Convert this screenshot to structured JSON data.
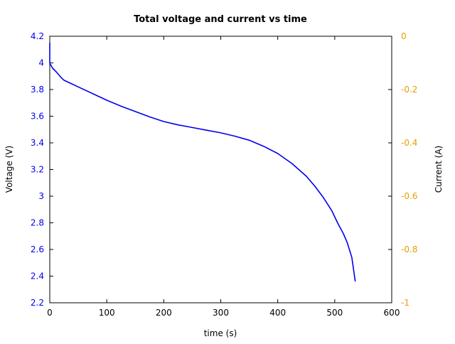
{
  "chart_data": {
    "type": "line",
    "title": "Total voltage and current vs time",
    "xlabel": "time (s)",
    "ylabel": "Voltage (V)",
    "y2label": "Current (A)",
    "xlim": [
      0,
      600
    ],
    "ylim": [
      2.2,
      4.2
    ],
    "y2lim": [
      -1,
      0
    ],
    "xticks": [
      "0",
      "100",
      "200",
      "300",
      "400",
      "500",
      "600"
    ],
    "yticks": [
      "2.2",
      "2.4",
      "2.6",
      "2.8",
      "3",
      "3.2",
      "3.4",
      "3.6",
      "3.8",
      "4",
      "4.2"
    ],
    "y2ticks": [
      "-1",
      "-0.8",
      "-0.6",
      "-0.4",
      "-0.2",
      "0"
    ],
    "grid": false,
    "colors": {
      "voltage": "#0000ee",
      "left_axis": "#0000ee",
      "right_axis": "#e69f00"
    },
    "series": [
      {
        "name": "Voltage",
        "axis": "left",
        "x": [
          0,
          0,
          1,
          5,
          12,
          20,
          25,
          35,
          50,
          75,
          100,
          125,
          150,
          175,
          200,
          225,
          250,
          275,
          300,
          325,
          350,
          375,
          400,
          425,
          450,
          465,
          480,
          495,
          505,
          515,
          522,
          530,
          536
        ],
        "values": [
          4.15,
          4.0,
          3.99,
          3.96,
          3.93,
          3.89,
          3.87,
          3.85,
          3.82,
          3.77,
          3.72,
          3.675,
          3.635,
          3.595,
          3.56,
          3.535,
          3.515,
          3.495,
          3.475,
          3.45,
          3.42,
          3.375,
          3.32,
          3.245,
          3.15,
          3.075,
          2.99,
          2.89,
          2.8,
          2.72,
          2.65,
          2.54,
          2.36
        ]
      }
    ]
  }
}
